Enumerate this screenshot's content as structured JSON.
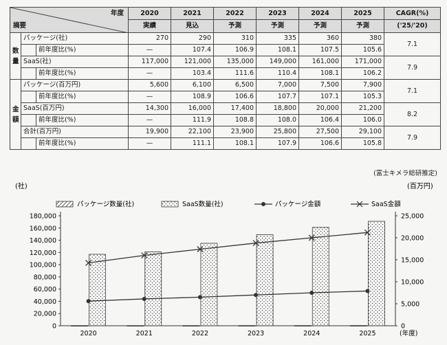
{
  "table": {
    "header_year_label": "年度",
    "header_summary_label": "摘要",
    "years": [
      "2020",
      "2021",
      "2022",
      "2023",
      "2024",
      "2025"
    ],
    "year_status": [
      "実績",
      "見込",
      "予測",
      "予測",
      "予測",
      "予測"
    ],
    "cagr_header": "CAGR(%)",
    "cagr_period": "('25/'20)",
    "groups": [
      {
        "label": "数量",
        "rows": [
          {
            "label": "パッケージ(社)",
            "indent": false,
            "values": [
              "270",
              "290",
              "310",
              "335",
              "360",
              "380"
            ],
            "cagr": "7.1"
          },
          {
            "label": "前年度比(%)",
            "indent": true,
            "values": [
              "—",
              "107.4",
              "106.9",
              "108.1",
              "107.5",
              "105.6"
            ],
            "cagr": ""
          },
          {
            "label": "SaaS(社)",
            "indent": false,
            "values": [
              "117,000",
              "121,000",
              "135,000",
              "149,000",
              "161,000",
              "171,000"
            ],
            "cagr": "7.9"
          },
          {
            "label": "前年度比(%)",
            "indent": true,
            "values": [
              "—",
              "103.4",
              "111.6",
              "110.4",
              "108.1",
              "106.2"
            ],
            "cagr": ""
          }
        ]
      },
      {
        "label": "金額",
        "rows": [
          {
            "label": "パッケージ(百万円)",
            "indent": false,
            "values": [
              "5,600",
              "6,100",
              "6,500",
              "7,000",
              "7,500",
              "7,900"
            ],
            "cagr": "7.1"
          },
          {
            "label": "前年度比(%)",
            "indent": true,
            "values": [
              "—",
              "108.9",
              "106.6",
              "107.7",
              "107.1",
              "105.3"
            ],
            "cagr": ""
          },
          {
            "label": "SaaS(百万円)",
            "indent": false,
            "values": [
              "14,300",
              "16,000",
              "17,400",
              "18,800",
              "20,000",
              "21,200"
            ],
            "cagr": "8.2"
          },
          {
            "label": "前年度比(%)",
            "indent": true,
            "values": [
              "—",
              "111.9",
              "108.8",
              "108.0",
              "106.4",
              "106.0"
            ],
            "cagr": ""
          },
          {
            "label": "合計(百万円)",
            "indent": false,
            "values": [
              "19,900",
              "22,100",
              "23,900",
              "25,800",
              "27,500",
              "29,100"
            ],
            "cagr": "7.9"
          },
          {
            "label": "前年度比(%)",
            "indent": true,
            "values": [
              "—",
              "111.1",
              "108.1",
              "107.9",
              "106.6",
              "105.8"
            ],
            "cagr": ""
          }
        ]
      }
    ],
    "source": "(富士キメラ総研推定)"
  },
  "chart_data": {
    "type": "bar",
    "categories": [
      "2020",
      "2021",
      "2022",
      "2023",
      "2024",
      "2025"
    ],
    "xlabel": "(年度)",
    "ylabel_left": "(社)",
    "ylabel_right": "(百万円)",
    "ylim_left": [
      0,
      180000
    ],
    "ylim_right": [
      0,
      25000
    ],
    "yticks_left": [
      "0",
      "20,000",
      "40,000",
      "60,000",
      "80,000",
      "100,000",
      "120,000",
      "140,000",
      "160,000",
      "180,000"
    ],
    "yticks_right": [
      "0",
      "5,000",
      "10,000",
      "15,000",
      "20,000",
      "25,000"
    ],
    "legend_position": "top",
    "series": [
      {
        "name": "パッケージ数量(社)",
        "kind": "bar",
        "axis": "left",
        "pattern": "hatch",
        "values": [
          270,
          290,
          310,
          335,
          360,
          380
        ]
      },
      {
        "name": "SaaS数量(社)",
        "kind": "bar",
        "axis": "left",
        "pattern": "dots",
        "values": [
          117000,
          121000,
          135000,
          149000,
          161000,
          171000
        ]
      },
      {
        "name": "パッケージ金額",
        "kind": "line",
        "axis": "right",
        "marker": "circle",
        "values": [
          5600,
          6100,
          6500,
          7000,
          7500,
          7900
        ]
      },
      {
        "name": "SaaS金額",
        "kind": "line",
        "axis": "right",
        "marker": "x",
        "values": [
          14300,
          16000,
          17400,
          18800,
          20000,
          21200
        ]
      }
    ]
  }
}
